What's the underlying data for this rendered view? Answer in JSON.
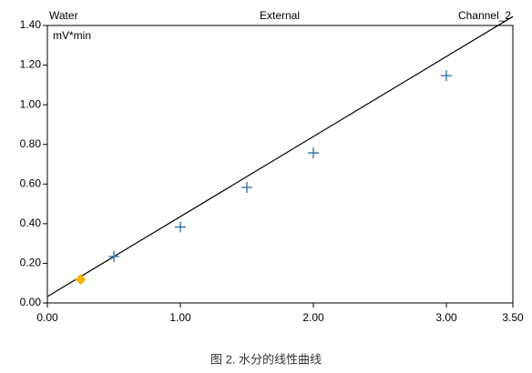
{
  "chart_data": {
    "type": "scatter",
    "annotations": [
      "Water",
      "External",
      "Channel_2"
    ],
    "ylabel": "mV*min",
    "caption": "图 2. 水分的线性曲线",
    "xlim": [
      0,
      3.5
    ],
    "xticks": [
      {
        "value": 0,
        "label": "0.00"
      },
      {
        "value": 1,
        "label": "1.00"
      },
      {
        "value": 2,
        "label": "2.00"
      },
      {
        "value": 3,
        "label": "3.00"
      },
      {
        "value": 3.5,
        "label": "3.50"
      }
    ],
    "ylim": [
      0,
      1.4
    ],
    "yticks": [
      {
        "value": 0,
        "label": "0.00"
      },
      {
        "value": 0.2,
        "label": "0.20"
      },
      {
        "value": 0.4,
        "label": "0.40"
      },
      {
        "value": 0.6,
        "label": "0.60"
      },
      {
        "value": 0.8,
        "label": "0.80"
      },
      {
        "value": 1.0,
        "label": "1.00"
      },
      {
        "value": 1.2,
        "label": "1.20"
      },
      {
        "value": 1.4,
        "label": "1.40"
      }
    ],
    "series": [
      {
        "type": "scatter",
        "marker": "plus",
        "color": "#2b6d9c",
        "x": [
          0.5,
          1.0,
          1.5,
          2.0,
          3.0
        ],
        "values": [
          0.234,
          0.383,
          0.583,
          0.757,
          1.147
        ]
      },
      {
        "type": "scatter",
        "marker": "diamond",
        "color": "#f5b400",
        "x": [
          0.25
        ],
        "values": [
          0.119
        ]
      },
      {
        "type": "line",
        "color": "#000000",
        "x": [
          0,
          3.5
        ],
        "values": [
          0.032,
          1.445
        ]
      }
    ]
  }
}
